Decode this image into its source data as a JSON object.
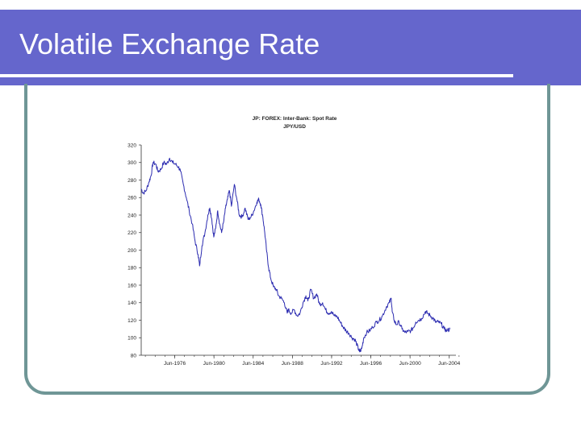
{
  "slide": {
    "title": "Volatile Exchange Rate"
  },
  "colors": {
    "title_bar": "#6566cc",
    "frame": "#6f9696",
    "series": "#2b2bb0"
  },
  "chart_data": {
    "type": "line",
    "title": "JP: FOREX: Inter-Bank: Spot Rate",
    "subtitle": "JPY/USD",
    "xlabel": "",
    "ylabel": "",
    "ylim": [
      80,
      320
    ],
    "yticks": [
      "320",
      "300",
      "280",
      "260",
      "240",
      "220",
      "200",
      "180",
      "160",
      "140",
      "120",
      "100",
      "80"
    ],
    "xlim": [
      1973.0,
      2005.1
    ],
    "xticks": [
      {
        "label": "Jun-1976",
        "x": 1976.42
      },
      {
        "label": "Jun-1980",
        "x": 1980.42
      },
      {
        "label": "Jun-1984",
        "x": 1984.42
      },
      {
        "label": "Jun-1988",
        "x": 1988.42
      },
      {
        "label": "Jun-1992",
        "x": 1992.42
      },
      {
        "label": "Jun-1996",
        "x": 1996.42
      },
      {
        "label": "Jun-2000",
        "x": 2000.42
      },
      {
        "label": "Jun-2004",
        "x": 2004.42
      }
    ],
    "grid": false,
    "legend": "none",
    "series": [
      {
        "x": [
          1973.0,
          1973.2,
          1973.5,
          1973.8,
          1974.0,
          1974.2,
          1974.5,
          1974.7,
          1975.0,
          1975.3,
          1975.6,
          1975.9,
          1976.2,
          1976.5,
          1976.8,
          1977.0,
          1977.3,
          1977.6,
          1977.9,
          1978.2,
          1978.5,
          1978.8,
          1978.95,
          1979.2,
          1979.5,
          1979.8,
          1980.0,
          1980.2,
          1980.4,
          1980.6,
          1980.8,
          1981.0,
          1981.2,
          1981.4,
          1981.6,
          1981.8,
          1982.0,
          1982.2,
          1982.5,
          1982.8,
          1983.0,
          1983.3,
          1983.6,
          1983.9,
          1984.2,
          1984.5,
          1984.8,
          1985.0,
          1985.2,
          1985.4,
          1985.6,
          1985.8,
          1986.0,
          1986.2,
          1986.5,
          1986.8,
          1987.0,
          1987.3,
          1987.6,
          1987.9,
          1988.0,
          1988.3,
          1988.6,
          1988.9,
          1989.2,
          1989.5,
          1989.8,
          1990.0,
          1990.3,
          1990.6,
          1990.9,
          1991.2,
          1991.5,
          1991.8,
          1992.1,
          1992.4,
          1992.7,
          1993.0,
          1993.3,
          1993.6,
          1993.9,
          1994.2,
          1994.5,
          1994.8,
          1995.0,
          1995.2,
          1995.3,
          1995.5,
          1995.7,
          1996.0,
          1996.3,
          1996.6,
          1997.0,
          1997.3,
          1997.6,
          1998.0,
          1998.3,
          1998.5,
          1998.6,
          1998.8,
          1999.0,
          1999.3,
          1999.6,
          1999.9,
          2000.2,
          2000.5,
          2000.8,
          2001.0,
          2001.3,
          2001.6,
          2002.0,
          2002.2,
          2002.5,
          2002.8,
          2003.0,
          2003.3,
          2003.6,
          2003.9,
          2004.2,
          2004.5
        ],
        "y": [
          270,
          265,
          268,
          278,
          285,
          300,
          298,
          290,
          292,
          300,
          298,
          305,
          300,
          298,
          295,
          290,
          275,
          260,
          245,
          230,
          210,
          195,
          182,
          205,
          220,
          240,
          248,
          235,
          215,
          225,
          245,
          230,
          220,
          232,
          248,
          258,
          268,
          250,
          275,
          255,
          240,
          238,
          248,
          235,
          238,
          245,
          255,
          258,
          252,
          238,
          220,
          198,
          180,
          168,
          158,
          155,
          148,
          145,
          140,
          128,
          132,
          128,
          132,
          125,
          128,
          140,
          148,
          142,
          155,
          145,
          150,
          138,
          140,
          132,
          128,
          130,
          125,
          124,
          118,
          112,
          108,
          105,
          100,
          98,
          92,
          86,
          84,
          88,
          100,
          106,
          108,
          112,
          118,
          120,
          125,
          135,
          140,
          145,
          130,
          120,
          115,
          118,
          110,
          106,
          107,
          108,
          112,
          118,
          120,
          122,
          130,
          128,
          125,
          122,
          118,
          118,
          116,
          110,
          108,
          110
        ]
      }
    ]
  }
}
